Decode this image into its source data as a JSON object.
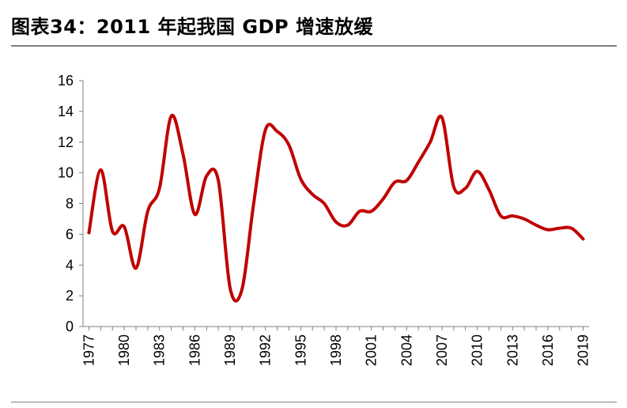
{
  "figure_title": "图表34：2011 年起我国 GDP 增速放缓",
  "chart_data": {
    "type": "line",
    "title": "",
    "xlabel": "",
    "ylabel": "",
    "x": [
      1977,
      1978,
      1979,
      1980,
      1981,
      1982,
      1983,
      1984,
      1985,
      1986,
      1987,
      1988,
      1989,
      1990,
      1991,
      1992,
      1993,
      1994,
      1995,
      1996,
      1997,
      1998,
      1999,
      2000,
      2001,
      2002,
      2003,
      2004,
      2005,
      2006,
      2007,
      2008,
      2009,
      2010,
      2011,
      2012,
      2013,
      2014,
      2015,
      2016,
      2017,
      2018,
      2019
    ],
    "series": [
      {
        "name": "",
        "color": "#c00000",
        "values": [
          6.1,
          10.2,
          6.2,
          6.5,
          3.8,
          7.5,
          9.0,
          13.7,
          11.2,
          7.3,
          9.8,
          9.5,
          2.5,
          2.4,
          8.0,
          12.8,
          12.7,
          11.8,
          9.6,
          8.6,
          8.0,
          6.8,
          6.6,
          7.5,
          7.5,
          8.3,
          9.4,
          9.5,
          10.7,
          12.0,
          13.6,
          9.1,
          9.0,
          10.1,
          8.9,
          7.2,
          7.2,
          7.0,
          6.6,
          6.3,
          6.4,
          6.4,
          5.7
        ]
      }
    ],
    "xticks": [
      "1977",
      "1980",
      "1983",
      "1986",
      "1989",
      "1992",
      "1995",
      "1998",
      "2001",
      "2004",
      "2007",
      "2010",
      "2013",
      "2016",
      "2019"
    ],
    "yticks": [
      "0",
      "2",
      "4",
      "6",
      "8",
      "10",
      "12",
      "14",
      "16"
    ],
    "ylim": [
      0,
      16
    ],
    "grid": false,
    "legend": "none"
  }
}
